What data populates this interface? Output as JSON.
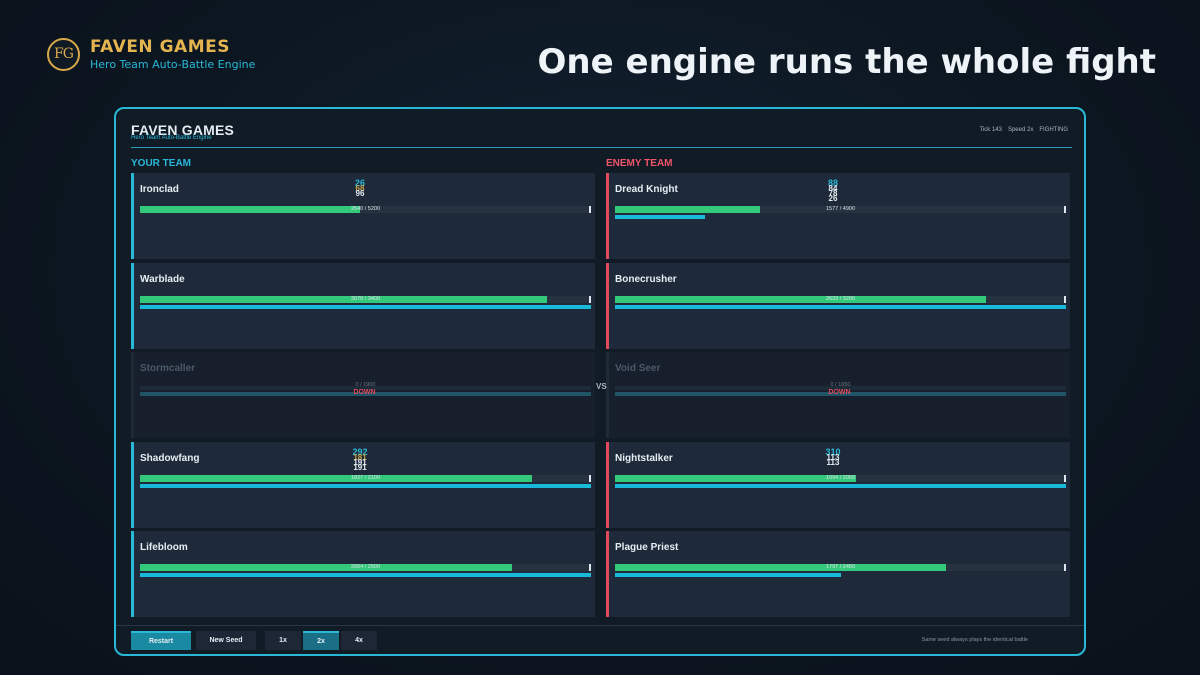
{
  "brand": {
    "logo": "FG",
    "name": "FAVEN GAMES",
    "subtitle": "Hero Team Auto-Battle Engine"
  },
  "headline": "One engine runs the whole fight",
  "app": {
    "title": "FAVEN GAMES",
    "subtitle": "Hero Team Auto-Battle Engine",
    "status": {
      "tick": "Tick 143",
      "speed": "Speed 2x",
      "state": "FIGHTING"
    }
  },
  "teams": {
    "yours_label": "YOUR TEAM",
    "enemy_label": "ENEMY TEAM",
    "vs": "VS"
  },
  "your_team": [
    {
      "name": "Ironclad",
      "hp_text": "2540 / 5200",
      "hp": 0.4885,
      "energy": 0.0,
      "floats": [
        "26",
        "68",
        "96"
      ],
      "float_colors": [
        "#2ab8d8",
        "#caa545",
        "#e6edf3"
      ]
    },
    {
      "name": "Warblade",
      "hp_text": "3070 / 3400",
      "hp": 0.903,
      "energy": 1.0,
      "floats": [],
      "float_colors": []
    },
    {
      "name": "Stormcaller",
      "hp_text": "0 / 1900",
      "hp": 0,
      "energy": 0,
      "dead": true,
      "down_label": "DOWN",
      "floats": [],
      "float_colors": []
    },
    {
      "name": "Shadowfang",
      "hp_text": "1827 / 2100",
      "hp": 0.87,
      "energy": 1.0,
      "floats": [
        "292",
        "181",
        "191",
        "191"
      ],
      "float_colors": [
        "#2ab8d8",
        "#caa545",
        "#e6edf3",
        "#e6edf3"
      ]
    },
    {
      "name": "Lifebloom",
      "hp_text": "2064 / 2500",
      "hp": 0.8256,
      "energy": 1.0,
      "floats": [],
      "float_colors": []
    }
  ],
  "enemy_team": [
    {
      "name": "Dread Knight",
      "hp_text": "1577 / 4900",
      "hp": 0.3218,
      "energy": 0.2,
      "floats": [
        "88",
        "84",
        "78",
        "26"
      ],
      "float_colors": [
        "#2ab8d8",
        "#e6edf3",
        "#e6edf3",
        "#e6edf3"
      ]
    },
    {
      "name": "Bonecrusher",
      "hp_text": "2633 / 3200",
      "hp": 0.8228,
      "energy": 1.0,
      "floats": [],
      "float_colors": []
    },
    {
      "name": "Void Seer",
      "hp_text": "0 / 1650",
      "hp": 0,
      "energy": 0,
      "dead": true,
      "down_label": "DOWN",
      "floats": [],
      "float_colors": []
    },
    {
      "name": "Nightstalker",
      "hp_text": "1094 / 2050",
      "hp": 0.5337,
      "energy": 1.0,
      "floats": [
        "310",
        "113",
        "113"
      ],
      "float_colors": [
        "#2ab8d8",
        "#e6edf3",
        "#e6edf3"
      ]
    },
    {
      "name": "Plague Priest",
      "hp_text": "1797 / 2450",
      "hp": 0.7335,
      "energy": 0.5,
      "floats": [],
      "float_colors": []
    }
  ],
  "footer": {
    "restart": "Restart",
    "new_seed": "New Seed",
    "speed_1x": "1x",
    "speed_2x": "2x",
    "speed_4x": "4x",
    "note": "Same seed always plays the identical battle"
  },
  "colors": {
    "accent": "#2ab8d8",
    "enemy": "#e14a5c",
    "hp": "#34c97a",
    "gold": "#e3b44f"
  }
}
